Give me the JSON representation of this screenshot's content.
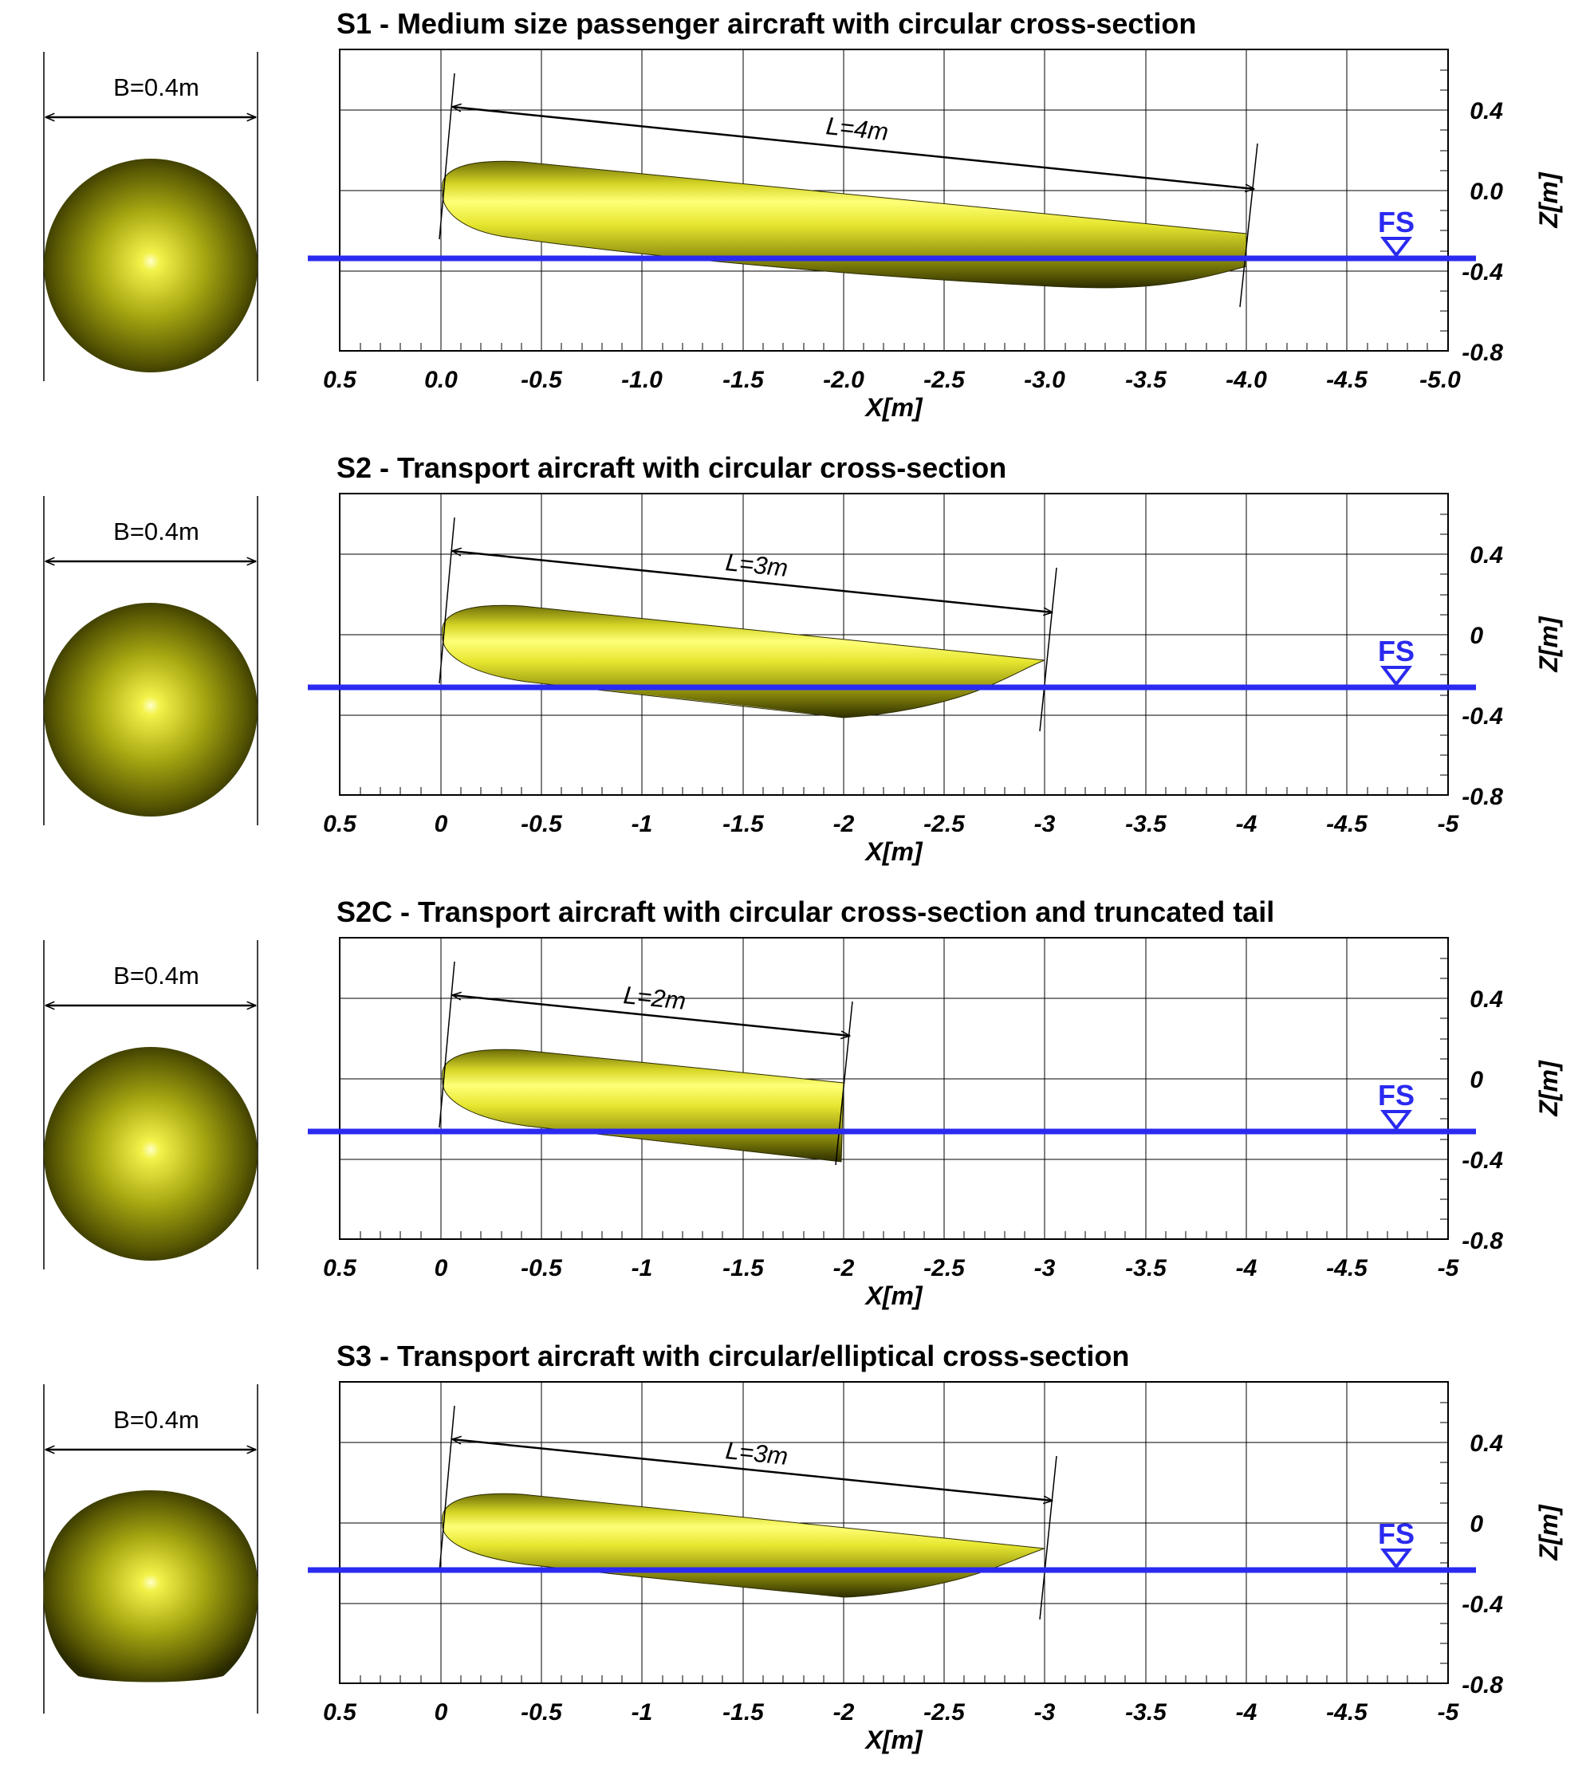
{
  "figure": {
    "x_axis_label": "X[m]",
    "z_axis_label": "Z[m]",
    "free_surface_label": "FS",
    "colors": {
      "waterline": "#2a2af0",
      "body": "#e2e23a",
      "body_dark": "#2e2e00",
      "text": "#000000"
    },
    "panels": [
      {
        "id": "S1",
        "title": "S1 - Medium size passenger aircraft with circular cross-section",
        "section_width_label": "B=0.4m",
        "length_label": "L=4m",
        "section_shape": "circular",
        "x_tick_labels": [
          "0.5",
          "0.0",
          "-0.5",
          "-1.0",
          "-1.5",
          "-2.0",
          "-2.5",
          "-3.0",
          "-3.5",
          "-4.0",
          "-4.5",
          "-5.0"
        ],
        "z_tick_labels": [
          "0.4",
          "0.0",
          "-0.4",
          "-0.8"
        ]
      },
      {
        "id": "S2",
        "title": "S2 - Transport aircraft with circular cross-section",
        "section_width_label": "B=0.4m",
        "length_label": "L=3m",
        "section_shape": "circular",
        "x_tick_labels": [
          "0.5",
          "0",
          "-0.5",
          "-1",
          "-1.5",
          "-2",
          "-2.5",
          "-3",
          "-3.5",
          "-4",
          "-4.5",
          "-5"
        ],
        "z_tick_labels": [
          "0.4",
          "0",
          "-0.4",
          "-0.8"
        ]
      },
      {
        "id": "S2C",
        "title": "S2C - Transport aircraft with circular cross-section and truncated tail",
        "section_width_label": "B=0.4m",
        "length_label": "L=2m",
        "section_shape": "circular",
        "x_tick_labels": [
          "0.5",
          "0",
          "-0.5",
          "-1",
          "-1.5",
          "-2",
          "-2.5",
          "-3",
          "-3.5",
          "-4",
          "-4.5",
          "-5"
        ],
        "z_tick_labels": [
          "0.4",
          "0",
          "-0.4",
          "-0.8"
        ]
      },
      {
        "id": "S3",
        "title": "S3 - Transport aircraft with circular/elliptical cross-section",
        "section_width_label": "B=0.4m",
        "length_label": "L=3m",
        "section_shape": "circular-elliptical",
        "x_tick_labels": [
          "0.5",
          "0",
          "-0.5",
          "-1",
          "-1.5",
          "-2",
          "-2.5",
          "-3",
          "-3.5",
          "-4",
          "-4.5",
          "-5"
        ],
        "z_tick_labels": [
          "0.4",
          "0",
          "-0.4",
          "-0.8"
        ]
      }
    ]
  }
}
